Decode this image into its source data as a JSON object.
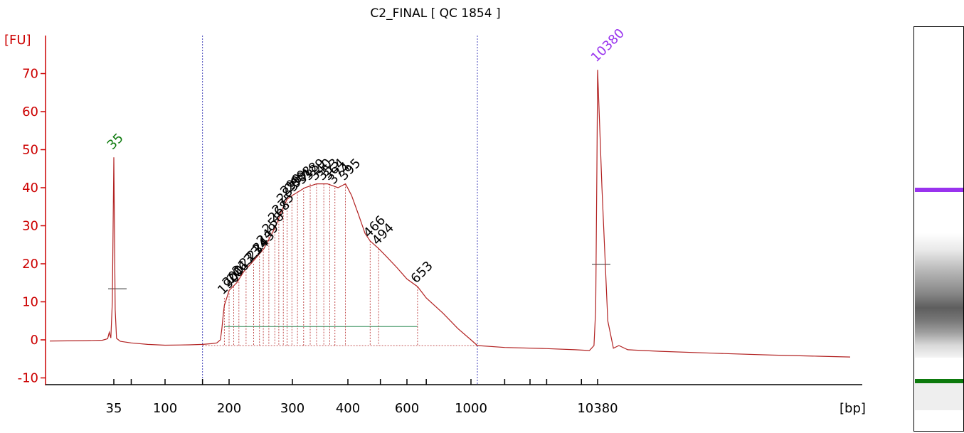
{
  "title": "C2_FINAL  [ QC 1854 ]",
  "colors": {
    "trace": "#b22222",
    "axis": "#cc0000",
    "marker_lower": "#0d7a0d",
    "marker_upper": "#9933ee",
    "baseline": "#2e8b57",
    "region": "#4444bb"
  },
  "chart_data": {
    "type": "line",
    "title": "C2_FINAL  [ QC 1854 ]",
    "ylabel": "[FU]",
    "xlabel": "[bp]",
    "ylim": [
      -11,
      79
    ],
    "yticks": [
      -10,
      0,
      10,
      20,
      30,
      40,
      50,
      60,
      70
    ],
    "xticks": [
      {
        "label": "35",
        "bp": 35
      },
      {
        "label": "",
        "bp": 50
      },
      {
        "label": "100",
        "bp": 100
      },
      {
        "label": "",
        "bp": 150
      },
      {
        "label": "200",
        "bp": 200
      },
      {
        "label": "300",
        "bp": 300
      },
      {
        "label": "400",
        "bp": 400
      },
      {
        "label": "",
        "bp": 500
      },
      {
        "label": "600",
        "bp": 600
      },
      {
        "label": "",
        "bp": 700
      },
      {
        "label": "1000",
        "bp": 1000
      },
      {
        "label": "",
        "bp": 1500
      },
      {
        "label": "",
        "bp": 2000
      },
      {
        "label": "",
        "bp": 3000
      },
      {
        "label": "",
        "bp": 7000
      },
      {
        "label": "10380",
        "bp": 10380
      }
    ],
    "marker_peaks": [
      {
        "label": "35",
        "bp": 35,
        "fu": 48
      },
      {
        "label": "10380",
        "bp": 10380,
        "fu": 71
      }
    ],
    "peaks": [
      {
        "label": "190",
        "bp": 190,
        "fu": 11
      },
      {
        "label": "200",
        "bp": 200,
        "fu": 13
      },
      {
        "label": "206",
        "bp": 206,
        "fu": 14
      },
      {
        "label": "213",
        "bp": 213,
        "fu": 16
      },
      {
        "label": "223",
        "bp": 223,
        "fu": 18
      },
      {
        "label": "234",
        "bp": 234,
        "fu": 20
      },
      {
        "label": "243",
        "bp": 243,
        "fu": 22
      },
      {
        "label": "249",
        "bp": 249,
        "fu": 24
      },
      {
        "label": "258",
        "bp": 258,
        "fu": 27
      },
      {
        "label": "268",
        "bp": 268,
        "fu": 30
      },
      {
        "label": "275",
        "bp": 275,
        "fu": 32
      },
      {
        "label": "283",
        "bp": 283,
        "fu": 35
      },
      {
        "label": "290",
        "bp": 290,
        "fu": 37
      },
      {
        "label": "299",
        "bp": 299,
        "fu": 38
      },
      {
        "label": "308",
        "bp": 308,
        "fu": 39
      },
      {
        "label": "318",
        "bp": 318,
        "fu": 40
      },
      {
        "label": "329",
        "bp": 329,
        "fu": 41
      },
      {
        "label": "340",
        "bp": 340,
        "fu": 41
      },
      {
        "label": "353",
        "bp": 353,
        "fu": 41
      },
      {
        "label": "364",
        "bp": 364,
        "fu": 41
      },
      {
        "label": "374",
        "bp": 374,
        "fu": 40
      },
      {
        "label": "395",
        "bp": 395,
        "fu": 41
      },
      {
        "label": "466",
        "bp": 466,
        "fu": 26
      },
      {
        "label": "494",
        "bp": 494,
        "fu": 24
      },
      {
        "label": "653",
        "bp": 653,
        "fu": 14
      }
    ],
    "region": {
      "from_bp": 150,
      "to_bp": 1100
    },
    "trace": [
      {
        "bp": 10,
        "fu": -0.3
      },
      {
        "bp": 20,
        "fu": -0.2
      },
      {
        "bp": 28,
        "fu": -0.1
      },
      {
        "bp": 31,
        "fu": 0.3
      },
      {
        "bp": 32,
        "fu": 2
      },
      {
        "bp": 33,
        "fu": 0.5
      },
      {
        "bp": 34,
        "fu": 10
      },
      {
        "bp": 35,
        "fu": 48
      },
      {
        "bp": 36,
        "fu": 8
      },
      {
        "bp": 37,
        "fu": 0.4
      },
      {
        "bp": 40,
        "fu": -0.4
      },
      {
        "bp": 50,
        "fu": -0.8
      },
      {
        "bp": 70,
        "fu": -1.2
      },
      {
        "bp": 100,
        "fu": -1.4
      },
      {
        "bp": 130,
        "fu": -1.3
      },
      {
        "bp": 150,
        "fu": -1.2
      },
      {
        "bp": 165,
        "fu": -1.0
      },
      {
        "bp": 175,
        "fu": -0.8
      },
      {
        "bp": 182,
        "fu": 0
      },
      {
        "bp": 185,
        "fu": 3
      },
      {
        "bp": 188,
        "fu": 7
      },
      {
        "bp": 190,
        "fu": 9
      },
      {
        "bp": 195,
        "fu": 11
      },
      {
        "bp": 200,
        "fu": 13
      },
      {
        "bp": 210,
        "fu": 15
      },
      {
        "bp": 220,
        "fu": 18
      },
      {
        "bp": 230,
        "fu": 20
      },
      {
        "bp": 240,
        "fu": 22
      },
      {
        "bp": 250,
        "fu": 24
      },
      {
        "bp": 260,
        "fu": 27
      },
      {
        "bp": 270,
        "fu": 30
      },
      {
        "bp": 280,
        "fu": 34
      },
      {
        "bp": 290,
        "fu": 37
      },
      {
        "bp": 300,
        "fu": 38
      },
      {
        "bp": 310,
        "fu": 39
      },
      {
        "bp": 320,
        "fu": 40
      },
      {
        "bp": 340,
        "fu": 41
      },
      {
        "bp": 360,
        "fu": 41
      },
      {
        "bp": 380,
        "fu": 40
      },
      {
        "bp": 395,
        "fu": 41
      },
      {
        "bp": 410,
        "fu": 38
      },
      {
        "bp": 430,
        "fu": 33
      },
      {
        "bp": 450,
        "fu": 28
      },
      {
        "bp": 466,
        "fu": 26
      },
      {
        "bp": 480,
        "fu": 25
      },
      {
        "bp": 494,
        "fu": 24
      },
      {
        "bp": 520,
        "fu": 22
      },
      {
        "bp": 560,
        "fu": 19
      },
      {
        "bp": 600,
        "fu": 16
      },
      {
        "bp": 653,
        "fu": 14
      },
      {
        "bp": 700,
        "fu": 11
      },
      {
        "bp": 800,
        "fu": 7
      },
      {
        "bp": 900,
        "fu": 3
      },
      {
        "bp": 1000,
        "fu": 0
      },
      {
        "bp": 1100,
        "fu": -1.5
      },
      {
        "bp": 1500,
        "fu": -2
      },
      {
        "bp": 3000,
        "fu": -2.3
      },
      {
        "bp": 6000,
        "fu": -2.6
      },
      {
        "bp": 8500,
        "fu": -2.8
      },
      {
        "bp": 9500,
        "fu": -1.5
      },
      {
        "bp": 9900,
        "fu": 8
      },
      {
        "bp": 10200,
        "fu": 45
      },
      {
        "bp": 10380,
        "fu": 71
      },
      {
        "bp": 10600,
        "fu": 40
      },
      {
        "bp": 10900,
        "fu": 5
      },
      {
        "bp": 11200,
        "fu": -2.2
      },
      {
        "bp": 11500,
        "fu": -1.5
      },
      {
        "bp": 12000,
        "fu": -2.6
      },
      {
        "bp": 14000,
        "fu": -3.0
      },
      {
        "bp": 18000,
        "fu": -3.5
      },
      {
        "bp": 24000,
        "fu": -4.0
      },
      {
        "bp": 30000,
        "fu": -4.3
      },
      {
        "bp": 35000,
        "fu": -4.5
      }
    ]
  }
}
